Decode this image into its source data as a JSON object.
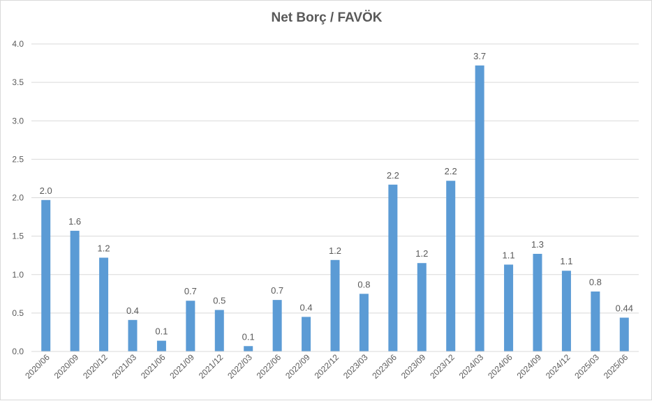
{
  "chart_data": {
    "type": "bar",
    "title": "Net Borç / FAVÖK",
    "xlabel": "",
    "ylabel": "",
    "ylim": [
      0,
      4.0
    ],
    "y_ticks": [
      "0.0",
      "0.5",
      "1.0",
      "1.5",
      "2.0",
      "2.5",
      "3.0",
      "3.5",
      "4.0"
    ],
    "grid": true,
    "legend": "none",
    "bar_color": "#5b9bd5",
    "categories": [
      "2020/06",
      "2020/09",
      "2020/12",
      "2021/03",
      "2021/06",
      "2021/09",
      "2021/12",
      "2022/03",
      "2022/06",
      "2022/09",
      "2022/12",
      "2023/03",
      "2023/06",
      "2023/09",
      "2023/12",
      "2024/03",
      "2024/06",
      "2024/09",
      "2024/12",
      "2025/03",
      "2025/06"
    ],
    "values": [
      1.97,
      1.57,
      1.22,
      0.41,
      0.14,
      0.66,
      0.54,
      0.07,
      0.67,
      0.45,
      1.19,
      0.75,
      2.17,
      1.15,
      2.22,
      3.72,
      1.13,
      1.27,
      1.05,
      0.78,
      0.44
    ],
    "data_labels": [
      "2.0",
      "1.6",
      "1.2",
      "0.4",
      "0.1",
      "0.7",
      "0.5",
      "0.1",
      "0.7",
      "0.4",
      "1.2",
      "0.8",
      "2.2",
      "1.2",
      "2.2",
      "3.7",
      "1.1",
      "1.3",
      "1.1",
      "0.8",
      "0.44"
    ]
  }
}
